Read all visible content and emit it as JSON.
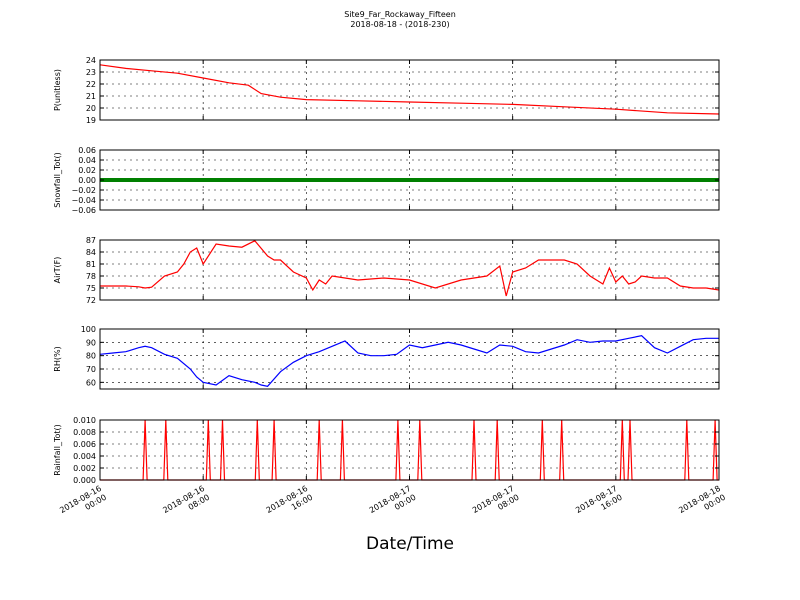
{
  "figure": {
    "title": "Site9_Far_Rockaway_Fifteen",
    "subtitle": "2018-08-18 - (2018-230)",
    "xlabel": "Date/Time"
  },
  "chart_data": [
    {
      "type": "line",
      "ylabel": "P(unitless)",
      "color": "#ff0000",
      "ylim": [
        19,
        24
      ],
      "yticks": [
        "19",
        "20",
        "21",
        "22",
        "23",
        "24"
      ],
      "ytick_values": [
        19,
        20,
        21,
        22,
        23,
        24
      ],
      "xlim": [
        "2018-08-16 00:00",
        "2018-08-18 00:00"
      ],
      "x_hours": [
        0,
        2,
        4,
        6,
        8,
        10,
        11.5,
        12.5,
        14,
        16,
        20,
        24,
        28,
        32,
        36,
        40,
        44,
        48
      ],
      "y": [
        23.6,
        23.3,
        23.1,
        22.9,
        22.5,
        22.1,
        21.9,
        21.2,
        20.9,
        20.7,
        20.6,
        20.5,
        20.4,
        20.3,
        20.1,
        19.9,
        19.6,
        19.5
      ]
    },
    {
      "type": "scatter",
      "ylabel": "Snowfall_Tot()",
      "color": "#008000",
      "ylim": [
        -0.06,
        0.06
      ],
      "yticks": [
        "−0.06",
        "−0.04",
        "−0.02",
        "0.00",
        "0.02",
        "0.04",
        "0.06"
      ],
      "ytick_values": [
        -0.06,
        -0.04,
        -0.02,
        0,
        0.02,
        0.04,
        0.06
      ],
      "xlim": [
        "2018-08-16 00:00",
        "2018-08-18 00:00"
      ],
      "x_hours": [
        0,
        48
      ],
      "y": [
        0,
        0
      ]
    },
    {
      "type": "line",
      "ylabel": "AirT(F)",
      "color": "#ff0000",
      "ylim": [
        72,
        87
      ],
      "yticks": [
        "72",
        "75",
        "78",
        "81",
        "84",
        "87"
      ],
      "ytick_values": [
        72,
        75,
        78,
        81,
        84,
        87
      ],
      "xlim": [
        "2018-08-16 00:00",
        "2018-08-18 00:00"
      ],
      "x_hours": [
        0,
        2,
        3,
        3.5,
        4,
        5,
        6,
        6.5,
        7,
        7.5,
        8,
        9,
        10,
        11,
        12,
        13,
        13.5,
        14,
        15,
        16,
        16.5,
        17,
        17.5,
        18,
        19,
        20,
        22,
        24,
        26,
        28,
        30,
        31,
        31.5,
        32,
        33,
        34,
        35,
        36,
        37,
        38,
        39,
        39.5,
        40,
        40.5,
        41,
        41.5,
        42,
        43,
        44,
        45,
        46,
        47,
        48
      ],
      "y": [
        75.5,
        75.5,
        75.3,
        75,
        75.2,
        78,
        79,
        81,
        84,
        85,
        81,
        86,
        85.5,
        85.2,
        86.8,
        83,
        82,
        82,
        79,
        77.5,
        74.5,
        77,
        76,
        78,
        77.5,
        77,
        77.5,
        77,
        75,
        77,
        78,
        80.5,
        73,
        79,
        80,
        82,
        82,
        82,
        81,
        78,
        76,
        80,
        76.5,
        78,
        76,
        76.5,
        78,
        77.5,
        77.5,
        75.5,
        75,
        75,
        74.5
      ]
    },
    {
      "type": "line",
      "ylabel": "RH(%)",
      "color": "#0000ff",
      "ylim": [
        55,
        100
      ],
      "yticks": [
        "60",
        "70",
        "80",
        "90",
        "100"
      ],
      "ytick_values": [
        60,
        70,
        80,
        90,
        100
      ],
      "xlim": [
        "2018-08-16 00:00",
        "2018-08-18 00:00"
      ],
      "x_hours": [
        0,
        1,
        2,
        3,
        3.5,
        4,
        5,
        6,
        7,
        7.5,
        8,
        9,
        10,
        11,
        12,
        12.5,
        13,
        14,
        15,
        16,
        17,
        18,
        19,
        20,
        21,
        22,
        23,
        24,
        25,
        26,
        27,
        28,
        29,
        30,
        31,
        32,
        33,
        34,
        35,
        36,
        37,
        38,
        39,
        40,
        41,
        42,
        43,
        44,
        45,
        46,
        47,
        48
      ],
      "y": [
        81,
        82,
        83,
        86,
        87,
        86,
        81,
        78,
        70,
        64,
        60,
        58,
        65,
        62,
        60,
        58,
        57,
        68,
        75,
        80,
        83,
        87,
        91,
        82,
        80,
        80,
        81,
        88,
        86,
        88,
        90,
        88,
        85,
        82,
        88,
        87,
        83,
        82,
        85,
        88,
        92,
        90,
        91,
        91,
        93,
        95,
        86,
        82,
        87,
        92,
        93,
        93
      ]
    },
    {
      "type": "line",
      "ylabel": "Rainfall_Tot()",
      "color": "#ff0000",
      "ylim": [
        0,
        0.01
      ],
      "yticks": [
        "0.000",
        "0.002",
        "0.004",
        "0.006",
        "0.008",
        "0.010"
      ],
      "ytick_values": [
        0,
        0.002,
        0.004,
        0.006,
        0.008,
        0.01
      ],
      "xlim": [
        "2018-08-16 00:00",
        "2018-08-18 00:00"
      ],
      "xticks": [
        "2018-08-16\n00:00",
        "2018-08-16\n08:00",
        "2018-08-16\n16:00",
        "2018-08-17\n00:00",
        "2018-08-17\n08:00",
        "2018-08-17\n16:00",
        "2018-08-18\n00:00"
      ],
      "spike_hours": [
        3.5,
        5.1,
        8.4,
        9.5,
        12.2,
        13.5,
        17,
        18.8,
        23.1,
        24.8,
        29,
        30.8,
        34.3,
        35.8,
        40.5,
        41.1,
        45.5,
        47.7
      ],
      "spike_value": 0.01
    }
  ]
}
